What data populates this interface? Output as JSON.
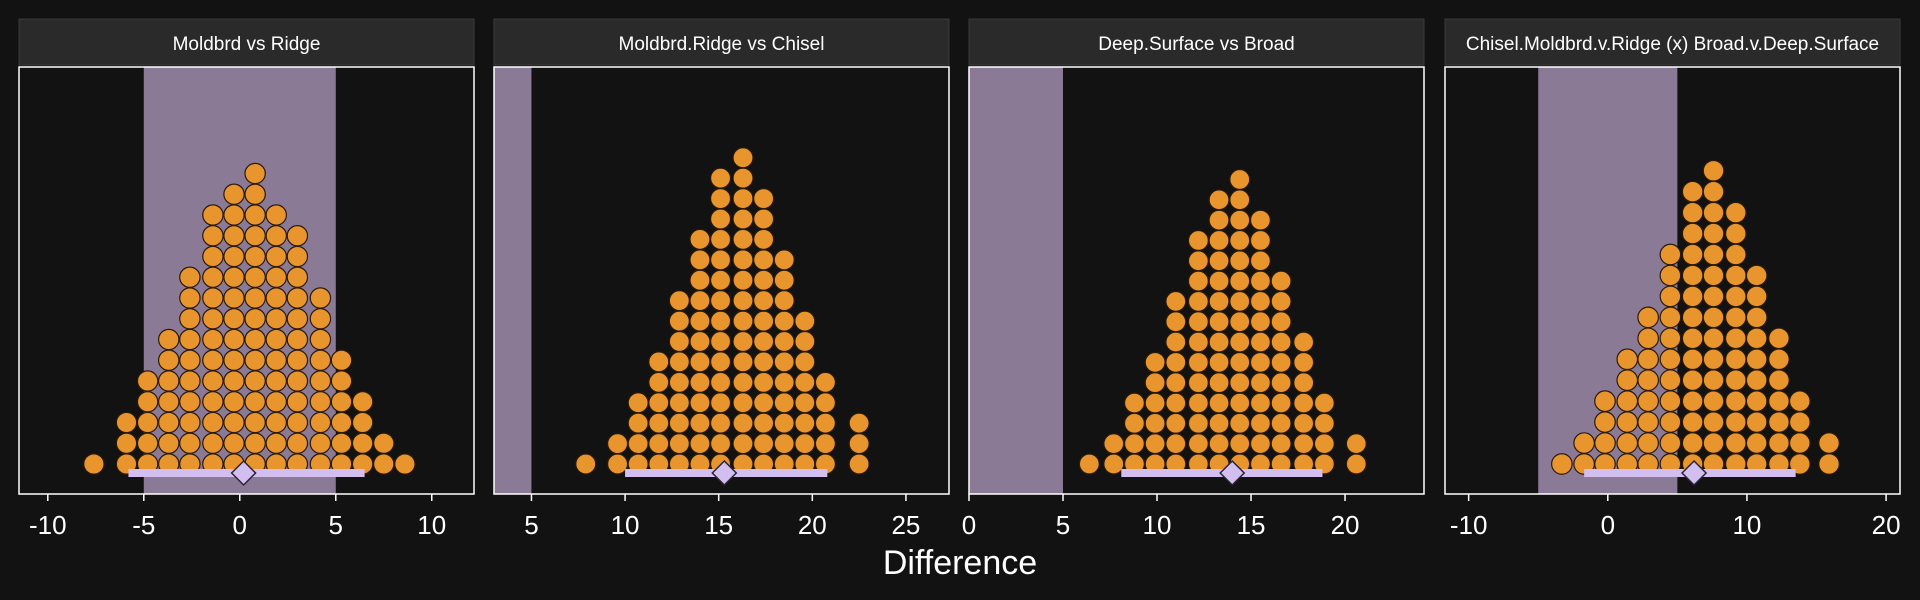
{
  "colors": {
    "background": "#121212",
    "panel_background": "#121212",
    "strip_background": "#2a2a2a",
    "strip_text": "#ffffff",
    "rope_band": "#8b7a96",
    "dot_fill": "#e8952e",
    "dot_stroke": "#2a1a0a",
    "interval": "#d2bff0",
    "point_estimate": "#d2bff0",
    "axis_text": "#ffffff",
    "frame": "#ffffff"
  },
  "x_axis_title": "Difference",
  "chart_data": [
    {
      "type": "dotplot",
      "title": "Moldbrd vs Ridge",
      "xlim": [
        -11.5,
        12.2
      ],
      "xticks": [
        -10,
        -5,
        0,
        5,
        10
      ],
      "xtick_labels": [
        "-10",
        "-5",
        "0",
        "5",
        "10"
      ],
      "rope": [
        -5,
        5
      ],
      "bin_width": 1.12,
      "point_estimate": 0.2,
      "interval": [
        -5.8,
        6.5
      ],
      "columns": [
        {
          "x": -7.6,
          "count": 1
        },
        {
          "x": -5.9,
          "count": 3
        },
        {
          "x": -4.8,
          "count": 5
        },
        {
          "x": -3.7,
          "count": 7
        },
        {
          "x": -2.6,
          "count": 10
        },
        {
          "x": -1.4,
          "count": 13
        },
        {
          "x": -0.3,
          "count": 14
        },
        {
          "x": 0.8,
          "count": 15
        },
        {
          "x": 1.9,
          "count": 13
        },
        {
          "x": 3.0,
          "count": 12
        },
        {
          "x": 4.2,
          "count": 9
        },
        {
          "x": 5.3,
          "count": 6
        },
        {
          "x": 6.4,
          "count": 4
        },
        {
          "x": 7.5,
          "count": 2
        },
        {
          "x": 8.6,
          "count": 1
        }
      ]
    },
    {
      "type": "dotplot",
      "title": "Moldbrd.Ridge vs Chisel",
      "xlim": [
        3,
        27.3
      ],
      "xticks": [
        5,
        10,
        15,
        20,
        25
      ],
      "xtick_labels": [
        "5",
        "10",
        "15",
        "20",
        "25"
      ],
      "rope": [
        -5,
        5
      ],
      "bin_width": 1.13,
      "point_estimate": 15.3,
      "interval": [
        10.0,
        20.8
      ],
      "columns": [
        {
          "x": 7.9,
          "count": 1
        },
        {
          "x": 9.6,
          "count": 2
        },
        {
          "x": 10.7,
          "count": 4
        },
        {
          "x": 11.8,
          "count": 6
        },
        {
          "x": 12.9,
          "count": 9
        },
        {
          "x": 14.0,
          "count": 12
        },
        {
          "x": 15.1,
          "count": 15
        },
        {
          "x": 16.3,
          "count": 16
        },
        {
          "x": 17.4,
          "count": 14
        },
        {
          "x": 18.5,
          "count": 11
        },
        {
          "x": 19.6,
          "count": 8
        },
        {
          "x": 20.7,
          "count": 5
        },
        {
          "x": 22.5,
          "count": 3
        }
      ]
    },
    {
      "type": "dotplot",
      "title": "Deep.Surface vs Broad",
      "xlim": [
        0,
        24.2
      ],
      "xticks": [
        0,
        5,
        10,
        15,
        20
      ],
      "xtick_labels": [
        "0",
        "5",
        "10",
        "15",
        "20"
      ],
      "rope": [
        -5,
        5
      ],
      "bin_width": 1.12,
      "point_estimate": 14.0,
      "interval": [
        8.1,
        18.8
      ],
      "columns": [
        {
          "x": 6.4,
          "count": 1
        },
        {
          "x": 7.7,
          "count": 2
        },
        {
          "x": 8.8,
          "count": 4
        },
        {
          "x": 9.9,
          "count": 6
        },
        {
          "x": 11.0,
          "count": 9
        },
        {
          "x": 12.2,
          "count": 12
        },
        {
          "x": 13.3,
          "count": 14
        },
        {
          "x": 14.4,
          "count": 15
        },
        {
          "x": 15.5,
          "count": 13
        },
        {
          "x": 16.6,
          "count": 10
        },
        {
          "x": 17.8,
          "count": 7
        },
        {
          "x": 18.9,
          "count": 4
        },
        {
          "x": 20.6,
          "count": 2
        }
      ]
    },
    {
      "type": "dotplot",
      "title": "Chisel.Moldbrd.v.Ridge (x) Broad.v.Deep.Surface",
      "xlim": [
        -11.7,
        21.0
      ],
      "xticks": [
        -10,
        0,
        10,
        20
      ],
      "xtick_labels": [
        "-10",
        "0",
        "10",
        "20"
      ],
      "rope": [
        -5,
        5
      ],
      "bin_width": 1.56,
      "point_estimate": 6.2,
      "interval": [
        -1.7,
        13.5
      ],
      "columns": [
        {
          "x": -3.3,
          "count": 1
        },
        {
          "x": -1.7,
          "count": 2
        },
        {
          "x": -0.2,
          "count": 4
        },
        {
          "x": 1.4,
          "count": 6
        },
        {
          "x": 2.9,
          "count": 8
        },
        {
          "x": 4.5,
          "count": 11
        },
        {
          "x": 6.1,
          "count": 14
        },
        {
          "x": 7.6,
          "count": 15
        },
        {
          "x": 9.2,
          "count": 13
        },
        {
          "x": 10.7,
          "count": 10
        },
        {
          "x": 12.3,
          "count": 7
        },
        {
          "x": 13.8,
          "count": 4
        },
        {
          "x": 15.9,
          "count": 2
        }
      ]
    }
  ]
}
